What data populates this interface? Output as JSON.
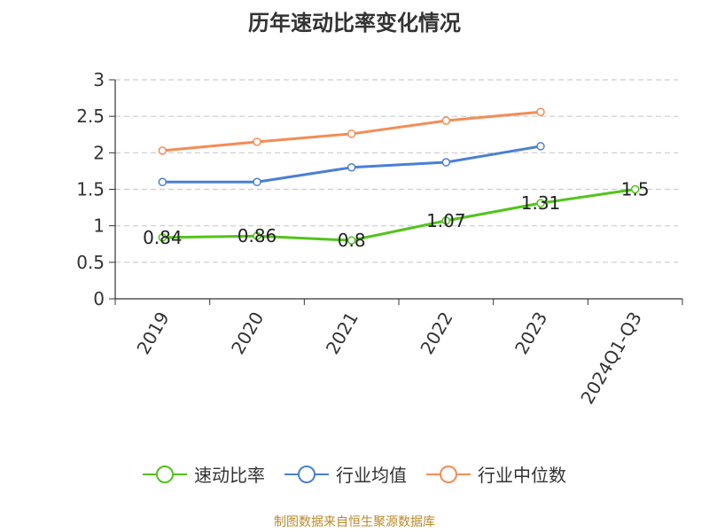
{
  "chart_data": {
    "type": "line",
    "title": "历年速动比率变化情况",
    "categories": [
      "2019",
      "2020",
      "2021",
      "2022",
      "2023",
      "2024Q1-Q3"
    ],
    "ylim": [
      0,
      3
    ],
    "yticks": [
      "0",
      "0.5",
      "1",
      "1.5",
      "2",
      "2.5",
      "3"
    ],
    "grid": true,
    "legend_position": "bottom",
    "series": [
      {
        "name": "速动比率",
        "color": "#52c41a",
        "values": [
          0.84,
          0.86,
          0.8,
          1.07,
          1.31,
          1.5
        ],
        "labels": [
          "0.84",
          "0.86",
          "0.8",
          "1.07",
          "1.31",
          "1.5"
        ]
      },
      {
        "name": "行业均值",
        "color": "#4a7fd6",
        "values": [
          1.6,
          1.6,
          1.8,
          1.87,
          2.09,
          null
        ]
      },
      {
        "name": "行业中位数",
        "color": "#f48c55",
        "values": [
          2.03,
          2.15,
          2.26,
          2.44,
          2.56,
          null
        ]
      }
    ]
  },
  "source": "制图数据来自恒生聚源数据库"
}
